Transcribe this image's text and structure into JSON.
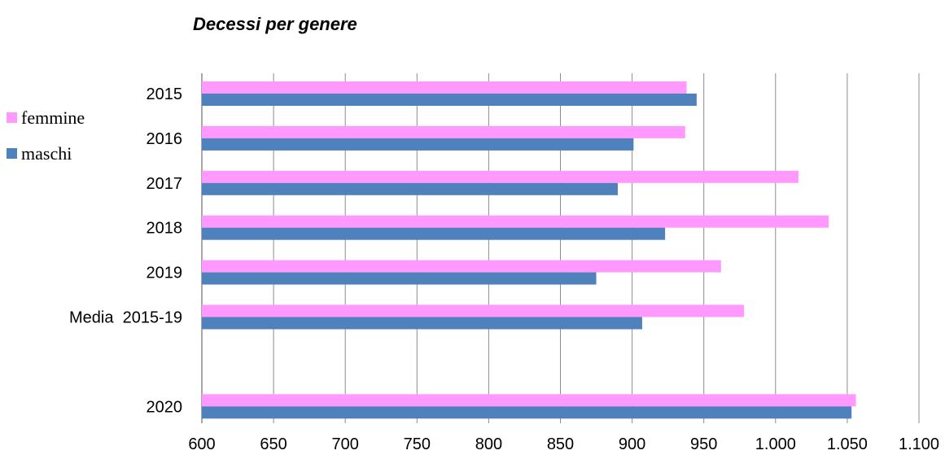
{
  "chart_data": {
    "type": "bar",
    "orientation": "horizontal",
    "title": "Decessi per genere",
    "categories": [
      "2015",
      "2016",
      "2017",
      "2018",
      "2019",
      "Media  2015-19",
      "",
      "2020"
    ],
    "series": [
      {
        "name": "femmine",
        "color": "#FF99FF",
        "values": [
          938,
          937,
          1016,
          1037,
          962,
          978,
          null,
          1056
        ]
      },
      {
        "name": "maschi",
        "color": "#4F81BD",
        "values": [
          945,
          901,
          890,
          923,
          875,
          907,
          null,
          1053
        ]
      }
    ],
    "xlim": [
      600,
      1100
    ],
    "xticks": [
      600,
      650,
      700,
      750,
      800,
      850,
      900,
      950,
      1000,
      1050,
      1100
    ],
    "xtick_labels": [
      "600",
      "650",
      "700",
      "750",
      "800",
      "850",
      "900",
      "950",
      "1.000",
      "1.050",
      "1.100"
    ],
    "grid": true,
    "legend_position": "left"
  }
}
